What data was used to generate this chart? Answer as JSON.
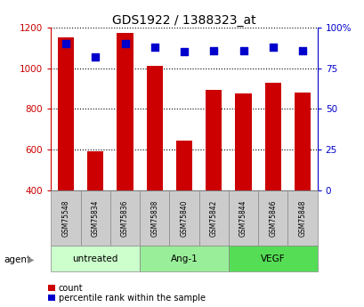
{
  "title": "GDS1922 / 1388323_at",
  "samples": [
    "GSM75548",
    "GSM75834",
    "GSM75836",
    "GSM75838",
    "GSM75840",
    "GSM75842",
    "GSM75844",
    "GSM75846",
    "GSM75848"
  ],
  "counts": [
    1150,
    590,
    1175,
    1010,
    645,
    895,
    875,
    930,
    880
  ],
  "percentiles": [
    90,
    82,
    90,
    88,
    85,
    86,
    86,
    88,
    86
  ],
  "ylim_left": [
    400,
    1200
  ],
  "ylim_right": [
    0,
    100
  ],
  "yticks_left": [
    400,
    600,
    800,
    1000,
    1200
  ],
  "yticks_right": [
    0,
    25,
    50,
    75,
    100
  ],
  "yticklabels_right": [
    "0",
    "25",
    "50",
    "75",
    "100%"
  ],
  "bar_color": "#cc0000",
  "dot_color": "#0000cc",
  "bar_width": 0.55,
  "groups": [
    {
      "label": "untreated",
      "indices": [
        0,
        1,
        2
      ],
      "color": "#ccffcc"
    },
    {
      "label": "Ang-1",
      "indices": [
        3,
        4,
        5
      ],
      "color": "#99ee99"
    },
    {
      "label": "VEGF",
      "indices": [
        6,
        7,
        8
      ],
      "color": "#55dd55"
    }
  ],
  "legend_count_label": "count",
  "legend_pct_label": "percentile rank within the sample",
  "agent_label": "agent",
  "bar_facecolor": "#d8d8d8",
  "tick_color_left": "#cc0000",
  "tick_color_right": "#0000cc"
}
